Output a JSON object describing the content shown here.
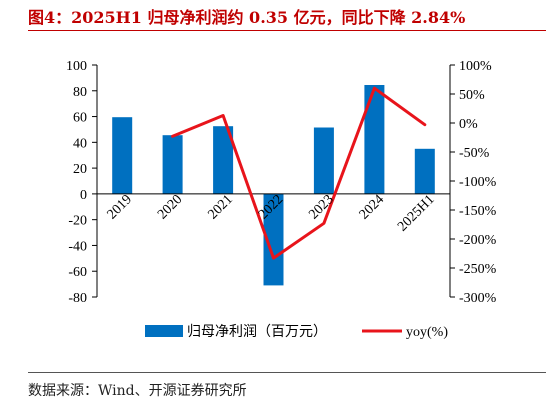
{
  "title": "图4：2025H1 归母净利润约 0.35 亿元，同比下降 2.84%",
  "source": "数据来源：Wind、开源证券研究所",
  "colors": {
    "bar": "#0070c0",
    "line": "#e8141b",
    "title": "#c00000"
  },
  "chart_data": {
    "type": "bar",
    "categories": [
      "2019",
      "2020",
      "2021",
      "2022",
      "2023",
      "2024",
      "2025H1"
    ],
    "left_ticks": [
      "-80",
      "-60",
      "-40",
      "-20",
      "0",
      "20",
      "40",
      "60",
      "80",
      "100"
    ],
    "right_ticks": [
      "-300%",
      "-250%",
      "-200%",
      "-150%",
      "-100%",
      "-50%",
      "0%",
      "50%",
      "100%"
    ],
    "ylim": [
      -80,
      100
    ],
    "y2lim": [
      -300,
      100
    ],
    "series": [
      {
        "name": "归母净利润（百万元）",
        "type": "bar",
        "axis": "left",
        "values": [
          59.5,
          45.5,
          52.5,
          -71,
          51.5,
          84.5,
          35
        ]
      },
      {
        "name": "yoy(%)",
        "type": "line",
        "axis": "right",
        "values": [
          null,
          -23,
          13,
          -233,
          -173,
          60,
          -3
        ]
      }
    ],
    "legend_position": "bottom",
    "grid": false
  }
}
